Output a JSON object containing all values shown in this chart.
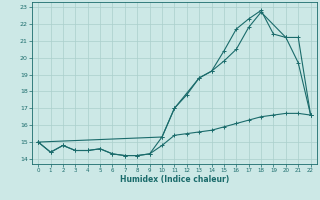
{
  "xlabel": "Humidex (Indice chaleur)",
  "bg_color": "#cce8e6",
  "line_color": "#1a6b6b",
  "grid_color": "#aacfcc",
  "xlim": [
    -0.5,
    22.5
  ],
  "ylim": [
    13.7,
    23.3
  ],
  "yticks": [
    14,
    15,
    16,
    17,
    18,
    19,
    20,
    21,
    22,
    23
  ],
  "xticks": [
    0,
    1,
    2,
    3,
    4,
    5,
    6,
    7,
    8,
    9,
    10,
    11,
    12,
    13,
    14,
    15,
    16,
    17,
    18,
    19,
    20,
    21,
    22
  ],
  "line1_x": [
    0,
    1,
    2,
    3,
    4,
    5,
    6,
    7,
    8,
    9,
    10,
    11,
    12,
    13,
    14,
    15,
    16,
    17,
    18,
    19,
    20,
    21,
    22
  ],
  "line1_y": [
    15.0,
    14.4,
    14.8,
    14.5,
    14.5,
    14.6,
    14.3,
    14.2,
    14.2,
    14.3,
    14.8,
    15.4,
    15.5,
    15.6,
    15.7,
    15.9,
    16.1,
    16.3,
    16.5,
    16.6,
    16.7,
    16.7,
    16.6
  ],
  "line2_x": [
    0,
    1,
    2,
    3,
    4,
    5,
    6,
    7,
    8,
    9,
    10,
    11,
    12,
    13,
    14,
    15,
    16,
    17,
    18,
    19,
    20,
    21,
    22
  ],
  "line2_y": [
    15.0,
    14.4,
    14.8,
    14.5,
    14.5,
    14.6,
    14.3,
    14.2,
    14.2,
    14.3,
    15.3,
    17.0,
    17.8,
    18.8,
    19.2,
    20.4,
    21.7,
    22.3,
    22.8,
    21.4,
    21.2,
    19.7,
    16.6
  ],
  "line3_x": [
    0,
    10,
    11,
    13,
    14,
    15,
    16,
    17,
    18,
    20,
    21,
    22
  ],
  "line3_y": [
    15.0,
    15.3,
    17.0,
    18.8,
    19.2,
    19.8,
    20.5,
    21.8,
    22.7,
    21.2,
    21.2,
    16.6
  ]
}
